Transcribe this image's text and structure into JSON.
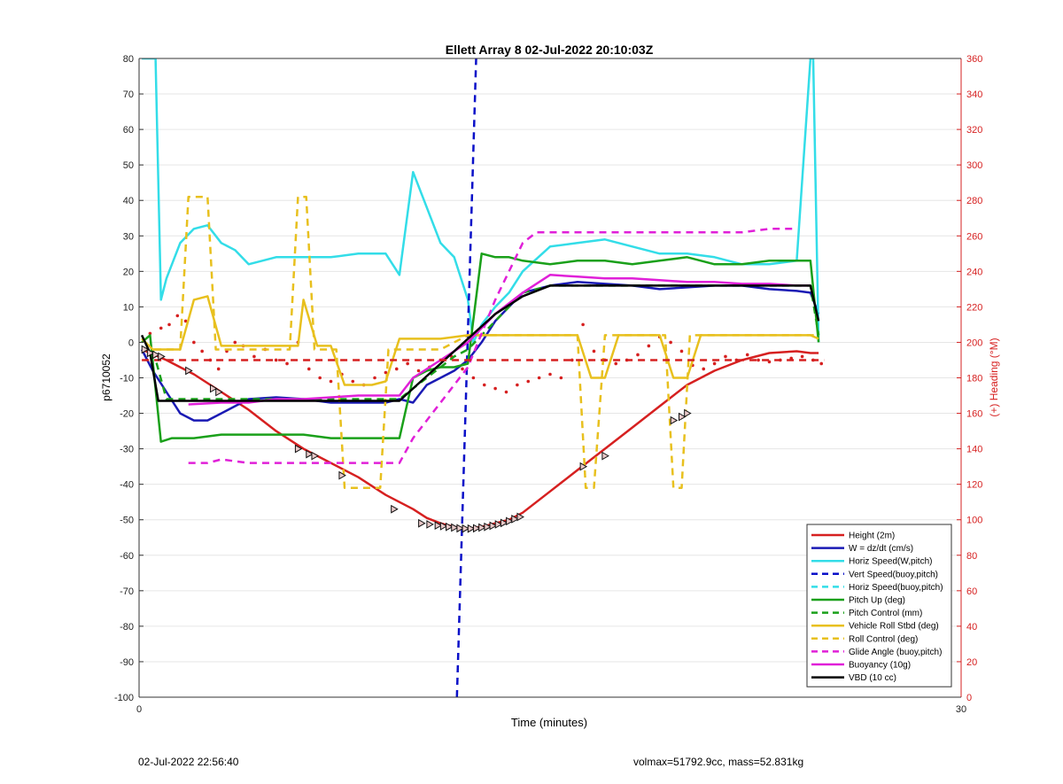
{
  "chart_data": {
    "type": "line",
    "title": "Ellett Array 8 02-Jul-2022 20:10:03Z",
    "xlabel": "Time (minutes)",
    "ylabel": "p6710052",
    "y2label": "(+) Heading (°M)",
    "xlim": [
      0,
      30
    ],
    "ylim": [
      -100,
      80
    ],
    "y2lim": [
      0,
      360
    ],
    "xticks": [
      "0",
      "30"
    ],
    "yticks": [
      "80",
      "70",
      "60",
      "50",
      "40",
      "30",
      "20",
      "10",
      "0",
      "-10",
      "-20",
      "-30",
      "-40",
      "-50",
      "-60",
      "-70",
      "-80",
      "-90",
      "-100"
    ],
    "y2ticks": [
      "360",
      "340",
      "320",
      "300",
      "280",
      "260",
      "240",
      "220",
      "200",
      "180",
      "160",
      "140",
      "120",
      "100",
      "80",
      "60",
      "40",
      "20",
      "0"
    ],
    "grid": "horizontal",
    "legend_position": "bottom-right",
    "colors": {
      "red": "#d62020",
      "blue": "#1a1ab4",
      "cyan": "#33dde8",
      "darkblue": "#0a10c8",
      "green": "#1aa01a",
      "yellow": "#e8c01e",
      "magenta": "#e020d8",
      "black": "#000000",
      "axis2": "#d62020"
    },
    "legend": [
      {
        "name": "Height (2m)",
        "color": "red",
        "style": "solid"
      },
      {
        "name": "W = dz/dt (cm/s)",
        "color": "blue",
        "style": "solid"
      },
      {
        "name": "Horiz Speed(W,pitch)",
        "color": "cyan",
        "style": "solid"
      },
      {
        "name": "Vert Speed(buoy,pitch)",
        "color": "darkblue",
        "style": "dashed"
      },
      {
        "name": "Horiz Speed(buoy,pitch)",
        "color": "cyan",
        "style": "dashed"
      },
      {
        "name": "Pitch Up (deg)",
        "color": "green",
        "style": "solid"
      },
      {
        "name": "Pitch Control (mm)",
        "color": "green",
        "style": "dashed"
      },
      {
        "name": "Vehicle Roll Stbd (deg)",
        "color": "yellow",
        "style": "solid"
      },
      {
        "name": "Roll Control (deg)",
        "color": "yellow",
        "style": "dashed"
      },
      {
        "name": "Glide Angle (buoy,pitch)",
        "color": "magenta",
        "style": "dashed"
      },
      {
        "name": "Buoyancy (10g)",
        "color": "magenta",
        "style": "solid"
      },
      {
        "name": "VBD (10 cc)",
        "color": "black",
        "style": "solid"
      }
    ],
    "series": [
      {
        "name": "Height (2m)",
        "color": "red",
        "style": "solid",
        "x": [
          0.1,
          1,
          2,
          3,
          4,
          5,
          6,
          7,
          8,
          9,
          10,
          10.5,
          11,
          11.5,
          12,
          12.5,
          13,
          13.5,
          14,
          15,
          16,
          17,
          18,
          19,
          20,
          21,
          22,
          23,
          24,
          24.5,
          24.8
        ],
        "y": [
          -2,
          -5,
          -9,
          -14,
          -19,
          -25,
          -30,
          -34,
          -38,
          -43,
          -47,
          -49.5,
          -51,
          -52,
          -52.5,
          -52,
          -51,
          -50,
          -48,
          -42,
          -36,
          -30,
          -24,
          -18,
          -12,
          -8,
          -5,
          -3,
          -2.5,
          -3,
          -3
        ]
      },
      {
        "name": "W = dz/dt (cm/s)",
        "color": "blue",
        "style": "solid",
        "x": [
          0.1,
          0.5,
          1,
          1.5,
          2,
          2.5,
          3,
          3.5,
          4,
          5,
          6,
          7,
          8,
          9,
          9.5,
          10,
          10.5,
          11,
          11.5,
          12,
          12.5,
          13,
          13.5,
          14,
          15,
          16,
          17,
          18,
          19,
          20,
          21,
          22,
          23,
          24,
          24.5,
          24.8
        ],
        "y": [
          -2,
          -8,
          -14,
          -20,
          -22,
          -22,
          -20,
          -18,
          -16,
          -15.5,
          -16,
          -17,
          -17,
          -17,
          -16,
          -17,
          -12,
          -10,
          -8,
          -5,
          0,
          6,
          10,
          14,
          16,
          17,
          16.5,
          16,
          15,
          15.5,
          16,
          16,
          15,
          14.5,
          14,
          8
        ]
      },
      {
        "name": "Horiz Speed(W,pitch)",
        "color": "cyan",
        "style": "solid",
        "x": [
          0.1,
          0.3,
          0.6,
          0.8,
          1,
          1.5,
          2,
          2.5,
          3,
          3.5,
          4,
          5,
          6,
          7,
          8,
          9,
          9.5,
          10,
          10.5,
          11,
          11.5,
          12,
          12.2,
          12.5,
          13,
          13.5,
          14,
          15,
          16,
          17,
          18,
          19,
          20,
          21,
          22,
          23,
          24,
          24.5,
          24.6,
          24.8
        ],
        "y": [
          80,
          80,
          80,
          12,
          18,
          28,
          32,
          33,
          28,
          26,
          22,
          24,
          24,
          24,
          25,
          25,
          19,
          48,
          38,
          28,
          24,
          12,
          0,
          5,
          10,
          14,
          20,
          27,
          28,
          29,
          27,
          25,
          25,
          24,
          22,
          22,
          23,
          80,
          80,
          0
        ]
      },
      {
        "name": "Vert Speed(buoy,pitch)",
        "color": "darkblue",
        "style": "dashed",
        "x": [
          11.6,
          12.3
        ],
        "y": [
          -100,
          80
        ]
      },
      {
        "name": "Pitch Up (deg)",
        "color": "green",
        "style": "solid",
        "x": [
          0.1,
          0.4,
          0.8,
          1.2,
          1.5,
          2,
          3,
          4,
          5,
          6,
          7,
          8,
          9,
          9.5,
          10,
          10.5,
          11,
          11.5,
          12,
          12.5,
          13,
          13.5,
          14,
          15,
          16,
          17,
          18,
          19,
          20,
          21,
          22,
          23,
          24,
          24.5,
          24.8
        ],
        "y": [
          0,
          2,
          -28,
          -27,
          -27,
          -27,
          -26,
          -26,
          -26,
          -26,
          -27,
          -27,
          -27,
          -27,
          -10,
          -8,
          -7,
          -7,
          -6,
          25,
          24,
          24,
          23,
          22,
          23,
          23,
          22,
          23,
          24,
          22,
          22,
          23,
          23,
          23,
          0
        ]
      },
      {
        "name": "Pitch Control (mm)",
        "color": "green",
        "style": "dashed",
        "x": [
          0.1,
          0.5,
          1,
          2,
          3,
          4,
          5,
          6,
          7,
          8,
          9,
          9.5,
          10,
          10.5,
          11,
          11.5,
          12,
          12.5,
          13,
          13.5,
          14,
          15,
          16,
          17,
          18,
          19,
          20,
          21,
          22,
          23,
          24,
          24.5,
          24.8
        ],
        "y": [
          -2,
          -2,
          -16,
          -16,
          -16,
          -16,
          -16,
          -16,
          -16,
          -16,
          -16,
          -16,
          -13,
          -10,
          -7,
          -4,
          -2,
          2,
          6,
          10,
          14,
          16,
          16,
          16,
          16,
          16,
          16,
          16,
          16,
          16,
          16,
          16,
          2
        ]
      },
      {
        "name": "Vehicle Roll Stbd (deg)",
        "color": "yellow",
        "style": "solid",
        "x": [
          0.1,
          0.5,
          1,
          1.5,
          2,
          2.5,
          3,
          3.5,
          4,
          5,
          5.8,
          6,
          6.5,
          7,
          7.5,
          8,
          8.5,
          9,
          9.5,
          10,
          11,
          12,
          13,
          14,
          15,
          16,
          16.5,
          17,
          17.5,
          18,
          19,
          19.5,
          20,
          20.5,
          21,
          22,
          23,
          24,
          24.5,
          24.8
        ],
        "y": [
          1,
          -2,
          -2,
          -2,
          12,
          13,
          -1,
          -1,
          -1,
          -1,
          -1,
          12,
          -1,
          -1,
          -12,
          -12,
          -12,
          -11,
          1,
          1,
          1,
          2,
          2,
          2,
          2,
          2,
          -10,
          -10,
          2,
          2,
          2,
          -10,
          -10,
          2,
          2,
          2,
          2,
          2,
          2,
          1
        ]
      },
      {
        "name": "Roll Control (deg)",
        "color": "yellow",
        "style": "dashed",
        "x": [
          0.1,
          1.5,
          1.8,
          2.5,
          2.8,
          3.2,
          5.5,
          5.8,
          6.1,
          6.4,
          7.2,
          7.5,
          8.8,
          9.1,
          9.5,
          11,
          12,
          13,
          14,
          15,
          16,
          16.3,
          16.6,
          17,
          19.2,
          19.5,
          19.8,
          20.1,
          24.5,
          24.8
        ],
        "y": [
          -2,
          -2,
          41,
          41,
          -2,
          -2,
          -2,
          41,
          41,
          -2,
          -2,
          -41,
          -41,
          -2,
          -2,
          -2,
          2,
          2,
          2,
          2,
          2,
          -41,
          -41,
          2,
          2,
          -41,
          -41,
          2,
          2,
          2
        ]
      },
      {
        "name": "Glide Angle (buoy,pitch)",
        "color": "magenta",
        "style": "dashed",
        "x": [
          1.8,
          2.5,
          3,
          4,
          5,
          6,
          7,
          8,
          9,
          9.5,
          10,
          11,
          12,
          13,
          14,
          14.5,
          15,
          16,
          17,
          18,
          19,
          20,
          21,
          22,
          23,
          24
        ],
        "y": [
          -34,
          -34,
          -33,
          -34,
          -34,
          -34,
          -34,
          -34,
          -34,
          -34,
          -27,
          -17,
          -7,
          12,
          28,
          31,
          31,
          31,
          31,
          31,
          31,
          31,
          31,
          31,
          32,
          32
        ]
      },
      {
        "name": "Buoyancy (10g)",
        "color": "magenta",
        "style": "solid",
        "x": [
          1.8,
          3,
          4,
          5,
          6,
          7,
          8,
          9,
          9.5,
          10,
          11,
          12,
          13,
          14,
          15,
          16,
          17,
          18,
          19,
          20,
          21,
          22,
          23,
          24,
          24.5
        ],
        "y": [
          -17.5,
          -17,
          -17,
          -16,
          -16,
          -15.5,
          -15,
          -15,
          -15,
          -10,
          -5,
          0,
          8,
          14,
          19,
          18.5,
          18,
          18,
          17.5,
          17,
          17,
          16.5,
          16.5,
          16,
          16
        ]
      },
      {
        "name": "VBD (10 cc)",
        "color": "black",
        "style": "solid",
        "x": [
          0.1,
          0.4,
          0.7,
          1,
          2,
          3,
          4,
          5,
          6,
          7,
          8,
          9,
          9.5,
          10,
          11,
          12,
          13,
          14,
          15,
          16,
          17,
          18,
          19,
          20,
          21,
          22,
          23,
          24,
          24.5,
          24.8
        ],
        "y": [
          2,
          -3,
          -16.5,
          -16.5,
          -16.5,
          -16.5,
          -16.5,
          -16.5,
          -16.5,
          -16.5,
          -16.5,
          -16.5,
          -16.5,
          -13,
          -6,
          1,
          8,
          13,
          16,
          16,
          16,
          16,
          16,
          16,
          16,
          16,
          16,
          16,
          16,
          6
        ]
      },
      {
        "name": "Heading",
        "axis": "right",
        "color": "red",
        "style": "dashed",
        "x": [
          0.1,
          25
        ],
        "y": [
          190,
          190
        ]
      }
    ],
    "heading_points": {
      "color": "red",
      "x": [
        0.4,
        0.8,
        1.1,
        1.4,
        1.7,
        2,
        2.3,
        2.6,
        2.9,
        3.2,
        3.5,
        3.8,
        4.2,
        4.6,
        5,
        5.4,
        5.8,
        6.2,
        6.6,
        7,
        7.4,
        7.8,
        8.2,
        8.6,
        9,
        9.4,
        9.8,
        10.2,
        10.6,
        11,
        11.4,
        11.8,
        12.2,
        12.6,
        13,
        13.4,
        13.8,
        14.2,
        14.6,
        15,
        15.4,
        15.8,
        16.2,
        16.6,
        17,
        17.4,
        17.8,
        18.2,
        18.6,
        19,
        19.4,
        19.8,
        20.2,
        20.6,
        21,
        21.4,
        21.8,
        22.2,
        22.6,
        23,
        23.4,
        23.8,
        24.2,
        24.6,
        24.9
      ],
      "y": [
        205,
        208,
        210,
        215,
        212,
        200,
        195,
        190,
        185,
        195,
        200,
        198,
        192,
        196,
        190,
        188,
        200,
        185,
        180,
        178,
        182,
        178,
        176,
        180,
        183,
        185,
        188,
        184,
        186,
        190,
        192,
        185,
        180,
        176,
        174,
        172,
        176,
        178,
        180,
        182,
        180,
        190,
        210,
        195,
        190,
        188,
        190,
        193,
        198,
        203,
        200,
        195,
        187,
        185,
        188,
        192,
        190,
        193,
        190,
        189,
        190,
        191,
        192,
        190,
        188
      ]
    },
    "height_markers": {
      "x": [
        0.2,
        0.4,
        0.6,
        0.8,
        1.8,
        2.7,
        2.9,
        5.8,
        6.2,
        6.4,
        7.4,
        9.3,
        10.3,
        10.6,
        10.9,
        11.1,
        11.3,
        11.5,
        11.7,
        11.9,
        12.1,
        12.3,
        12.5,
        12.7,
        12.9,
        13.1,
        13.3,
        13.5,
        13.7,
        13.9,
        16.2,
        17,
        19.5,
        19.8,
        20
      ],
      "y": [
        -2,
        -3,
        -3.5,
        -4,
        -8,
        -13,
        -14,
        -30,
        -31.5,
        -32,
        -37.5,
        -47,
        -51,
        -51.3,
        -51.6,
        -51.8,
        -52,
        -52.2,
        -52.4,
        -52.5,
        -52.5,
        -52.4,
        -52.2,
        -52,
        -51.7,
        -51.3,
        -50.9,
        -50.4,
        -49.8,
        -49.2,
        -35,
        -32,
        -22,
        -21,
        -20
      ]
    }
  },
  "footer": {
    "date": "02-Jul-2022 22:56:40",
    "info": "volmax=51792.9cc, mass=52.831kg"
  }
}
